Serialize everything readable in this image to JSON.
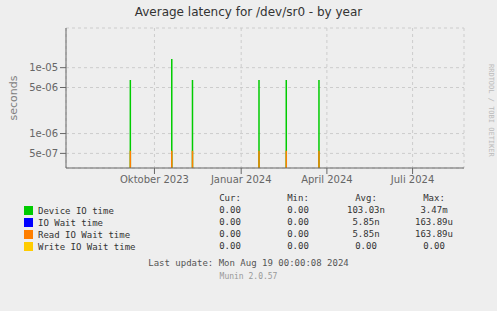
{
  "chart_data": {
    "type": "line",
    "title": "Average latency for /dev/sr0 - by year",
    "ylabel": "seconds",
    "log": "y",
    "grid": true,
    "x": [
      1693900000,
      1697700000,
      1699600000,
      1705700000,
      1708200000,
      1711200000
    ],
    "series": [
      {
        "name": "Device IO time",
        "color": "#00cc00",
        "values": [
          6.5e-06,
          1.35e-05,
          6.5e-06,
          6.5e-06,
          6.5e-06,
          6.5e-06
        ],
        "legend_values": [
          "0.00",
          "0.00",
          "103.03n",
          "3.47m"
        ]
      },
      {
        "name": "IO Wait time",
        "color": "#0000ff",
        "values": [
          null,
          null,
          null,
          null,
          null,
          null
        ],
        "legend_values": [
          "0.00",
          "0.00",
          "5.85n",
          "163.89u"
        ]
      },
      {
        "name": "Read IO Wait time",
        "color": "#ff7f00",
        "values": [
          5.5e-07,
          5.5e-07,
          5.5e-07,
          5.5e-07,
          5.5e-07,
          5.5e-07
        ],
        "legend_values": [
          "0.00",
          "0.00",
          "5.85n",
          "163.89u"
        ]
      },
      {
        "name": "Write IO Wait time",
        "color": "#ffcc00",
        "values": [
          null,
          null,
          null,
          null,
          null,
          null
        ],
        "legend_values": [
          "0.00",
          "0.00",
          "0.00",
          "0.00"
        ]
      }
    ],
    "legend_columns": [
      "Cur:",
      "Min:",
      "Avg:",
      "Max:"
    ],
    "xlim": [
      1688000000,
      1724500000
    ],
    "xticks": [
      {
        "value": 1696111200,
        "label": "Oktober 2023"
      },
      {
        "value": 1704067200,
        "label": "Januar 2024"
      },
      {
        "value": 1711926000,
        "label": "April 2024"
      },
      {
        "value": 1719784800,
        "label": "Juli 2024"
      }
    ],
    "ylim": [
      3e-07,
      4e-05
    ],
    "yticks": [
      {
        "value": 5e-07,
        "label": "5e-07"
      },
      {
        "value": 1e-06,
        "label": "1e-06"
      },
      {
        "value": 5e-06,
        "label": "5e-06"
      },
      {
        "value": 1e-05,
        "label": "1e-05"
      }
    ],
    "annotations": [
      "RRDTOOL / TOBI OETIKER",
      "Last update: Mon Aug 19 00:00:08 2024",
      "Munin 2.0.57"
    ]
  }
}
